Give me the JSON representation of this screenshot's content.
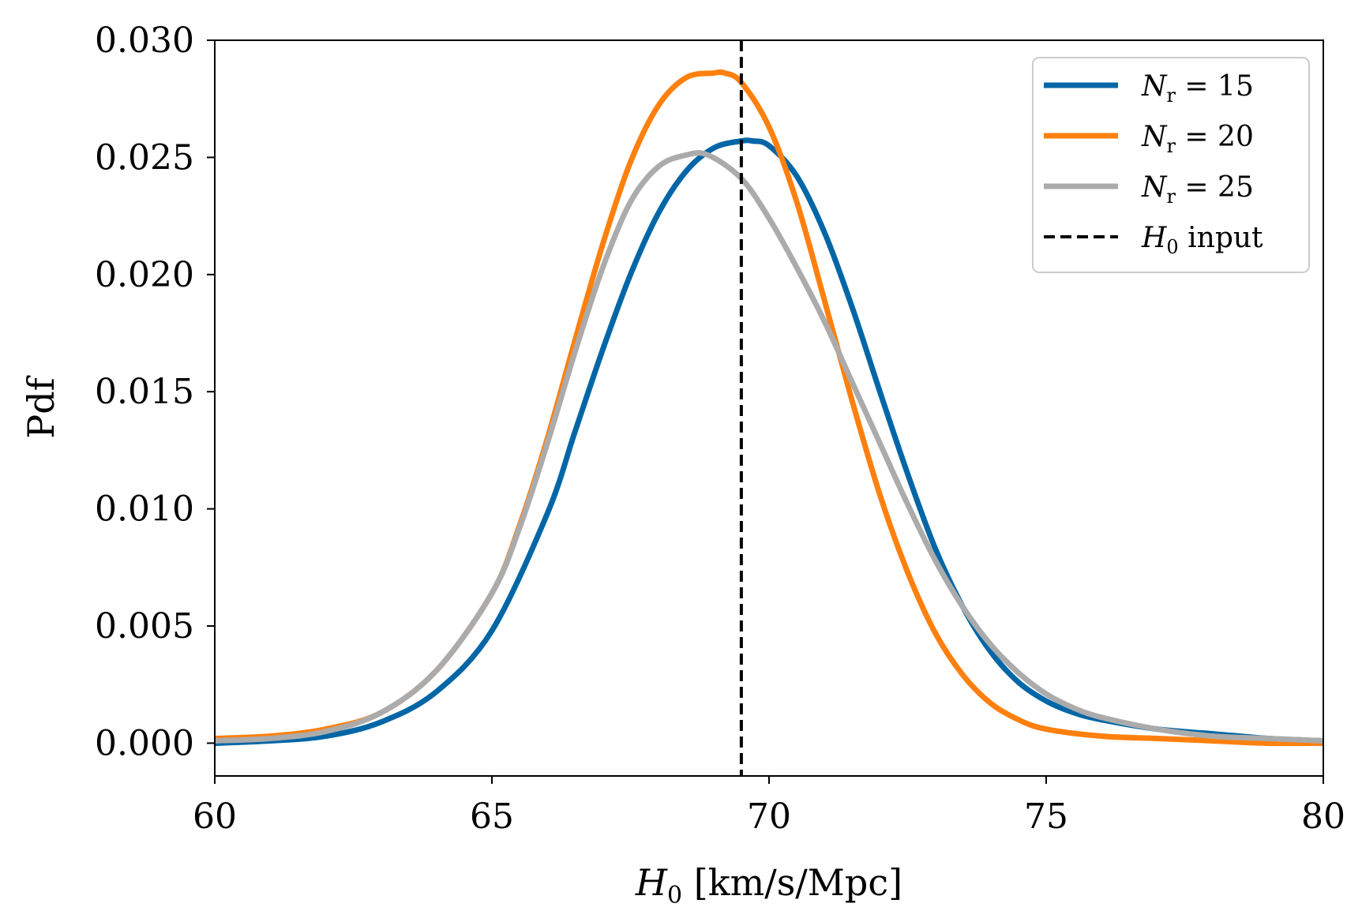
{
  "chart_data": {
    "type": "line",
    "title": "",
    "xlabel": "H0 [km/s/Mpc]",
    "ylabel": "Pdf",
    "xlim": [
      60,
      80
    ],
    "ylim": [
      -0.0014,
      0.03
    ],
    "xticks": [
      "60",
      "65",
      "70",
      "75",
      "80"
    ],
    "yticks": [
      "0.000",
      "0.005",
      "0.010",
      "0.015",
      "0.020",
      "0.025",
      "0.030"
    ],
    "legend_position": "top-right",
    "grid": false,
    "series": [
      {
        "name": "N_r = 15",
        "label_main": "N",
        "label_sub": "r",
        "label_rest": " = 15",
        "color": "#0066a6",
        "x": [
          60,
          61,
          62,
          63,
          64,
          65,
          66,
          66.5,
          67,
          67.5,
          68,
          68.5,
          69,
          69.5,
          69.7,
          70,
          70.5,
          71,
          71.5,
          72,
          72.5,
          73,
          73.5,
          74,
          74.5,
          75,
          75.5,
          76,
          77,
          78,
          79,
          80
        ],
        "y": [
          0.0,
          0.0001,
          0.0003,
          0.0009,
          0.0022,
          0.0048,
          0.0098,
          0.0133,
          0.0168,
          0.02,
          0.0226,
          0.0244,
          0.0254,
          0.0257,
          0.0257,
          0.0255,
          0.0242,
          0.0218,
          0.0186,
          0.015,
          0.0115,
          0.0083,
          0.0058,
          0.0039,
          0.0026,
          0.0018,
          0.0013,
          0.001,
          0.0006,
          0.0004,
          0.0002,
          0.0001
        ]
      },
      {
        "name": "N_r = 20",
        "label_main": "N",
        "label_sub": "r",
        "label_rest": " = 20",
        "color": "#ff800e",
        "x": [
          60,
          61,
          62,
          63,
          64,
          65,
          65.5,
          66,
          66.5,
          67,
          67.5,
          68,
          68.5,
          69,
          69.2,
          69.5,
          70,
          70.5,
          71,
          71.5,
          72,
          72.5,
          73,
          73.5,
          74,
          74.5,
          75,
          76,
          77,
          78,
          79,
          80
        ],
        "y": [
          0.0002,
          0.0003,
          0.0006,
          0.0013,
          0.0031,
          0.0064,
          0.0093,
          0.013,
          0.0172,
          0.0213,
          0.0248,
          0.0272,
          0.0284,
          0.0286,
          0.0286,
          0.0282,
          0.0263,
          0.0231,
          0.0189,
          0.0146,
          0.0106,
          0.0073,
          0.0047,
          0.0029,
          0.0017,
          0.001,
          0.0006,
          0.0003,
          0.0002,
          0.0001,
          0.0,
          0.0
        ]
      },
      {
        "name": "N_r = 25",
        "label_main": "N",
        "label_sub": "r",
        "label_rest": " = 25",
        "color": "#ababab",
        "x": [
          60,
          61,
          62,
          63,
          64,
          65,
          65.5,
          66,
          66.5,
          67,
          67.5,
          68,
          68.5,
          68.9,
          69.5,
          70,
          70.5,
          71,
          71.5,
          72,
          72.5,
          73,
          73.5,
          74,
          74.5,
          75,
          75.5,
          76,
          77,
          78,
          79,
          80
        ],
        "y": [
          0.0001,
          0.0002,
          0.0005,
          0.0013,
          0.0031,
          0.0064,
          0.0092,
          0.0128,
          0.0167,
          0.0203,
          0.0231,
          0.0246,
          0.0251,
          0.0251,
          0.0241,
          0.0224,
          0.0203,
          0.018,
          0.0154,
          0.0128,
          0.0102,
          0.0078,
          0.0058,
          0.0042,
          0.003,
          0.0021,
          0.0015,
          0.0011,
          0.0006,
          0.0003,
          0.0002,
          0.0001
        ]
      }
    ],
    "reference_line": {
      "name": "H0 input",
      "label_main": "H",
      "label_sub": "0",
      "label_rest": " input",
      "x": 69.5,
      "color": "#000000",
      "style": "dashed"
    }
  }
}
